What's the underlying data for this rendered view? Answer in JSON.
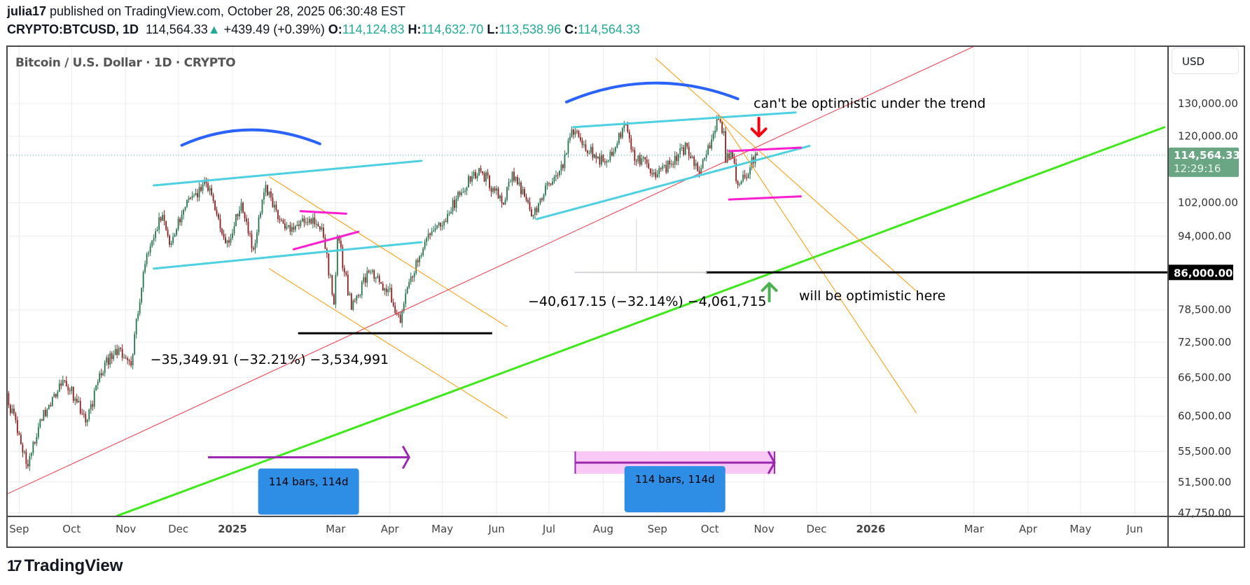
{
  "header": {
    "author": "julia17",
    "published": " published on TradingView.com, October 28, 2025 06:30:48 EST",
    "symbol": "CRYPTO:BTCUSD, 1D",
    "last": "114,564.33",
    "change": "+439.49 (+0.39%)",
    "o_label": "O:",
    "o": "114,124.83",
    "h_label": "H:",
    "h": "114,632.70",
    "l_label": "L:",
    "l": "113,538.96",
    "c_label": "C:",
    "c": "114,564.33"
  },
  "legend": "Bitcoin / U.S. Dollar · 1D · CRYPTO",
  "currency_button": "USD",
  "footer": {
    "logo": "TradingView"
  },
  "colors": {
    "up": "#26734d",
    "down": "#8b1e1e",
    "price_tag": "#6aa584",
    "red_trend": "#f23645",
    "green_trend": "#3ee81a",
    "cyan": "#4dd0e1",
    "orange": "#ff9800",
    "magenta": "#ff1ecf",
    "blue_arc": "#2962ff",
    "purple": "#9c27b0",
    "label_box": "#2e8de4",
    "range_fill": "#f9c8f5"
  },
  "chart_data": {
    "type": "candlestick",
    "title": "Bitcoin / U.S. Dollar · 1D · CRYPTO",
    "y_scale": "log",
    "ylim": [
      47000,
      150000
    ],
    "xlim": [
      "2024-08-22",
      "2026-06-25"
    ],
    "grid": true,
    "price_ticks": [
      "130,000.00",
      "120,000.00",
      "102,000.00",
      "94,000.00",
      "78,500.00",
      "72,500.00",
      "66,500.00",
      "60,500.00",
      "55,500.00",
      "51,500.00",
      "47,750.00"
    ],
    "price_tick_values": [
      130000,
      120000,
      102000,
      94000,
      78500,
      72500,
      66500,
      60500,
      55500,
      51500,
      47750
    ],
    "time_ticks": [
      {
        "label": "Sep",
        "date": "2024-09-01"
      },
      {
        "label": "Oct",
        "date": "2024-10-01"
      },
      {
        "label": "Nov",
        "date": "2024-11-01"
      },
      {
        "label": "Dec",
        "date": "2024-12-01"
      },
      {
        "label": "2025",
        "date": "2025-01-01"
      },
      {
        "label": "Mar",
        "date": "2025-03-01"
      },
      {
        "label": "Apr",
        "date": "2025-04-01"
      },
      {
        "label": "May",
        "date": "2025-05-01"
      },
      {
        "label": "Jun",
        "date": "2025-06-01"
      },
      {
        "label": "Jul",
        "date": "2025-07-01"
      },
      {
        "label": "Aug",
        "date": "2025-08-01"
      },
      {
        "label": "Sep",
        "date": "2025-09-01"
      },
      {
        "label": "Oct",
        "date": "2025-10-01"
      },
      {
        "label": "Nov",
        "date": "2025-11-01"
      },
      {
        "label": "Dec",
        "date": "2025-12-01"
      },
      {
        "label": "2026",
        "date": "2026-01-01"
      },
      {
        "label": "Mar",
        "date": "2026-03-01"
      },
      {
        "label": "Apr",
        "date": "2026-04-01"
      },
      {
        "label": "May",
        "date": "2026-05-01"
      },
      {
        "label": "Jun",
        "date": "2026-06-01"
      }
    ],
    "current_price": {
      "value": 114564.33,
      "label": "114,564.33",
      "countdown": "12:29:16"
    },
    "level_tag": {
      "value": 86000,
      "label": "86,000.00"
    },
    "price_path": [
      [
        "2024-08-24",
        64000
      ],
      [
        "2024-09-06",
        53500
      ],
      [
        "2024-09-13",
        60000
      ],
      [
        "2024-09-27",
        66000
      ],
      [
        "2024-10-10",
        60000
      ],
      [
        "2024-10-20",
        69000
      ],
      [
        "2024-10-28",
        71500
      ],
      [
        "2024-11-04",
        68500
      ],
      [
        "2024-11-13",
        90000
      ],
      [
        "2024-11-22",
        99000
      ],
      [
        "2024-11-26",
        92000
      ],
      [
        "2024-12-05",
        101000
      ],
      [
        "2024-12-17",
        107000
      ],
      [
        "2024-12-26",
        94500
      ],
      [
        "2024-12-30",
        92500
      ],
      [
        "2025-01-06",
        102000
      ],
      [
        "2025-01-13",
        91000
      ],
      [
        "2025-01-20",
        106500
      ],
      [
        "2025-01-27",
        98000
      ],
      [
        "2025-02-03",
        95000
      ],
      [
        "2025-02-14",
        98000
      ],
      [
        "2025-02-21",
        96000
      ],
      [
        "2025-02-28",
        79500
      ],
      [
        "2025-03-02",
        94000
      ],
      [
        "2025-03-10",
        78500
      ],
      [
        "2025-03-20",
        86000
      ],
      [
        "2025-03-31",
        82500
      ],
      [
        "2025-04-07",
        76000
      ],
      [
        "2025-04-12",
        84000
      ],
      [
        "2025-04-22",
        93500
      ],
      [
        "2025-05-01",
        96500
      ],
      [
        "2025-05-09",
        103000
      ],
      [
        "2025-05-22",
        111000
      ],
      [
        "2025-06-05",
        101500
      ],
      [
        "2025-06-10",
        110000
      ],
      [
        "2025-06-22",
        99000
      ],
      [
        "2025-06-30",
        107000
      ],
      [
        "2025-07-09",
        111000
      ],
      [
        "2025-07-14",
        122000
      ],
      [
        "2025-07-20",
        117500
      ],
      [
        "2025-08-02",
        112500
      ],
      [
        "2025-08-14",
        123500
      ],
      [
        "2025-08-19",
        113000
      ],
      [
        "2025-08-24",
        114000
      ],
      [
        "2025-08-31",
        108500
      ],
      [
        "2025-09-08",
        112000
      ],
      [
        "2025-09-18",
        117000
      ],
      [
        "2025-09-25",
        109500
      ],
      [
        "2025-10-06",
        125000
      ],
      [
        "2025-10-09",
        121500
      ],
      [
        "2025-10-10",
        112500
      ],
      [
        "2025-10-13",
        115500
      ],
      [
        "2025-10-17",
        106500
      ],
      [
        "2025-10-21",
        108500
      ],
      [
        "2025-10-27",
        115000
      ],
      [
        "2025-10-28",
        114564.33
      ]
    ],
    "drawings": {
      "lines": [
        {
          "name": "red-trendline",
          "color": "#f23645",
          "width": 1,
          "p1": [
            "2024-08-25",
            50000
          ],
          "p2": [
            "2026-03-01",
            149500
          ]
        },
        {
          "name": "green-trendline",
          "color": "#3ee81a",
          "width": 3,
          "p1": [
            "2024-10-27",
            47400
          ],
          "p2": [
            "2026-06-18",
            122700
          ]
        },
        {
          "name": "cyan-upper-left",
          "color": "#4dd0e1",
          "width": 3,
          "p1": [
            "2024-11-17",
            106400
          ],
          "p2": [
            "2025-04-19",
            113000
          ]
        },
        {
          "name": "cyan-lower-left",
          "color": "#4dd0e1",
          "width": 3,
          "p1": [
            "2024-11-17",
            86800
          ],
          "p2": [
            "2025-04-19",
            92600
          ]
        },
        {
          "name": "cyan-upper-right",
          "color": "#4dd0e1",
          "width": 3,
          "p1": [
            "2025-07-15",
            122700
          ],
          "p2": [
            "2025-11-19",
            127200
          ]
        },
        {
          "name": "cyan-lower-right",
          "color": "#4dd0e1",
          "width": 3,
          "p1": [
            "2025-06-24",
            98000
          ],
          "p2": [
            "2025-11-27",
            117200
          ]
        },
        {
          "name": "orange-channel-1",
          "color": "#ff9800",
          "width": 1,
          "p1": [
            "2025-01-22",
            108700
          ],
          "p2": [
            "2025-06-07",
            75300
          ]
        },
        {
          "name": "orange-channel-2",
          "color": "#ff9800",
          "width": 1,
          "p1": [
            "2025-01-22",
            86800
          ],
          "p2": [
            "2025-06-07",
            60200
          ]
        },
        {
          "name": "orange-channel-3",
          "color": "#ff9800",
          "width": 1,
          "p1": [
            "2025-08-31",
            145200
          ],
          "p2": [
            "2026-01-27",
            82200
          ]
        },
        {
          "name": "orange-channel-4",
          "color": "#ff9800",
          "width": 1,
          "p1": [
            "2025-10-07",
            125400
          ],
          "p2": [
            "2026-01-27",
            61000
          ]
        },
        {
          "name": "magenta-left-top",
          "color": "#ff1ecf",
          "width": 3,
          "p1": [
            "2025-02-09",
            99900
          ],
          "p2": [
            "2025-03-07",
            99300
          ]
        },
        {
          "name": "magenta-left-bottom",
          "color": "#ff1ecf",
          "width": 3,
          "p1": [
            "2025-02-05",
            91000
          ],
          "p2": [
            "2025-03-14",
            95000
          ]
        },
        {
          "name": "magenta-right-top",
          "color": "#ff1ecf",
          "width": 3,
          "p1": [
            "2025-10-12",
            115700
          ],
          "p2": [
            "2025-11-22",
            116700
          ]
        },
        {
          "name": "magenta-right-bottom",
          "color": "#ff1ecf",
          "width": 3,
          "p1": [
            "2025-10-12",
            102800
          ],
          "p2": [
            "2025-11-22",
            103600
          ]
        },
        {
          "name": "black-support-left",
          "color": "#000000",
          "width": 3,
          "p1": [
            "2025-02-08",
            74100
          ],
          "p2": [
            "2025-05-29",
            74100
          ]
        },
        {
          "name": "black-support-86000",
          "color": "#000000",
          "width": 3,
          "p1": [
            "2025-09-29",
            86000
          ],
          "p2": [
            "2026-06-30",
            86000
          ]
        },
        {
          "name": "measure-horizontal",
          "color": "#d1d4dc",
          "width": 2,
          "p1": [
            "2025-07-16",
            86000
          ],
          "p2": [
            "2025-09-29",
            86000
          ]
        },
        {
          "name": "measure-vertical",
          "color": "#d1d4dc",
          "width": 1,
          "p1": [
            "2025-08-20",
            98000
          ],
          "p2": [
            "2025-08-20",
            86400
          ]
        }
      ],
      "arcs": [
        {
          "name": "blue-arc-left",
          "color": "#2962ff",
          "p1": [
            "2024-12-03",
            117400
          ],
          "peak": [
            "2025-01-11",
            121900
          ],
          "p2": [
            "2025-02-20",
            117800
          ]
        },
        {
          "name": "blue-arc-right",
          "color": "#2962ff",
          "p1": [
            "2025-07-11",
            130500
          ],
          "peak": [
            "2025-08-29",
            136700
          ],
          "p2": [
            "2025-10-17",
            131500
          ]
        }
      ],
      "arrows": [
        {
          "name": "red-down-arrow",
          "color": "#f7000f",
          "from": [
            "2025-10-29",
            125400
          ],
          "to": [
            "2025-10-29",
            120100
          ]
        },
        {
          "name": "green-up-arrow",
          "color": "#4caf50",
          "from": [
            "2025-11-04",
            80200
          ],
          "to": [
            "2025-11-04",
            83700
          ]
        }
      ],
      "texts": [
        {
          "name": "annotation-bearish",
          "text": "can't be optimistic under the trend",
          "at": [
            "2025-10-26",
            130200
          ]
        },
        {
          "name": "annotation-bullish",
          "text": "will be optimistic here",
          "at": [
            "2025-11-21",
            81300
          ]
        },
        {
          "name": "measure-label-left",
          "text": "−35,349.91 (−32.21%) −3,534,991",
          "at": [
            "2024-11-15",
            69600
          ]
        },
        {
          "name": "measure-label-right",
          "text": "−40,617.15 (−32.14%) −4,061,715",
          "at": [
            "2025-06-19",
            80200
          ]
        }
      ],
      "date_ranges": [
        {
          "name": "date-range-left",
          "label": "114 bars, 114d",
          "from": "2024-12-18",
          "to": "2025-04-12",
          "price": 54700,
          "filled": false
        },
        {
          "name": "date-range-right",
          "label": "114 bars, 114d",
          "from": "2025-07-16",
          "to": "2025-11-07",
          "price": 54000,
          "filled": true
        }
      ]
    }
  }
}
